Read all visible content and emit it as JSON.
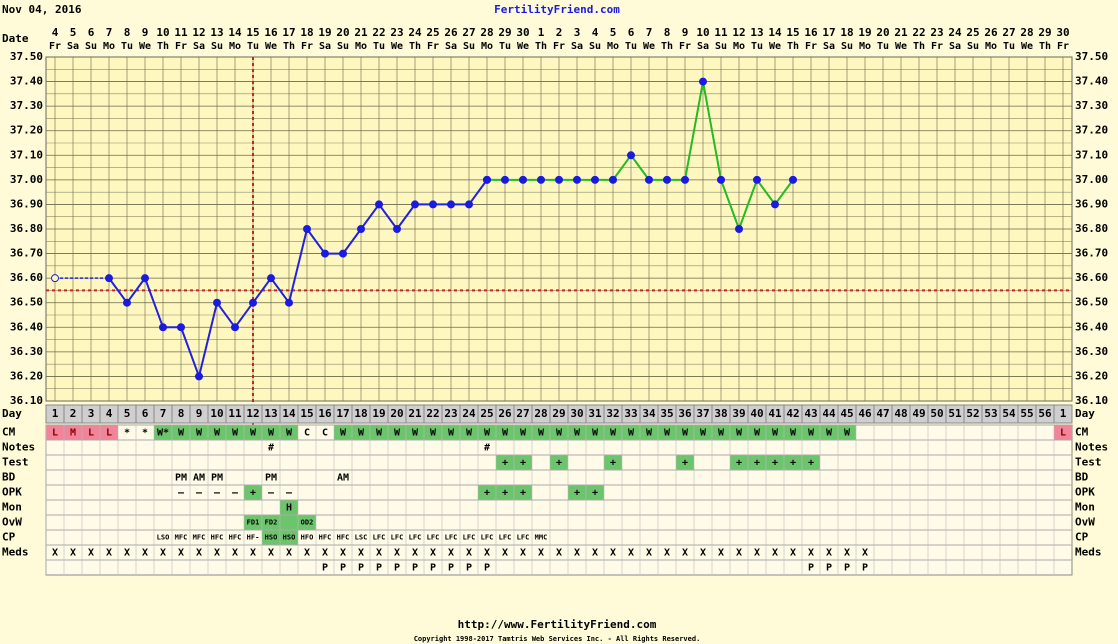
{
  "chart_data": {
    "type": "line",
    "header_date": "Nov 04, 2016",
    "title": "FertilityFriend.com",
    "date_label": "Date",
    "day_label": "Day",
    "dates": [
      4,
      5,
      6,
      7,
      8,
      9,
      10,
      11,
      12,
      13,
      14,
      15,
      16,
      17,
      18,
      19,
      20,
      21,
      22,
      23,
      24,
      25,
      26,
      27,
      28,
      29,
      30,
      1,
      2,
      3,
      4,
      5,
      6,
      7,
      8,
      9,
      10,
      11,
      12,
      13,
      14,
      15,
      16,
      17,
      18,
      19,
      20,
      21,
      22,
      23,
      24,
      25,
      26,
      27,
      28,
      29,
      30
    ],
    "weekdays": [
      "Fr",
      "Sa",
      "Su",
      "Mo",
      "Tu",
      "We",
      "Th",
      "Fr",
      "Sa",
      "Su",
      "Mo",
      "Tu",
      "We",
      "Th",
      "Fr",
      "Sa",
      "Su",
      "Mo",
      "Tu",
      "We",
      "Th",
      "Fr",
      "Sa",
      "Su",
      "Mo",
      "Tu",
      "We",
      "Th",
      "Fr",
      "Sa",
      "Su",
      "Mo",
      "Tu",
      "We",
      "Th",
      "Fr",
      "Sa",
      "Su",
      "Mo",
      "Tu",
      "We",
      "Th",
      "Fr",
      "Sa",
      "Su",
      "Mo",
      "Tu",
      "We",
      "Th",
      "Fr",
      "Sa",
      "Su",
      "Mo",
      "Tu",
      "We",
      "Th",
      "Fr"
    ],
    "categories": [
      1,
      2,
      3,
      4,
      5,
      6,
      7,
      8,
      9,
      10,
      11,
      12,
      13,
      14,
      15,
      16,
      17,
      18,
      19,
      20,
      21,
      22,
      23,
      24,
      25,
      26,
      27,
      28,
      29,
      30,
      31,
      32,
      33,
      34,
      35,
      36,
      37,
      38,
      39,
      40,
      41,
      42,
      43,
      44,
      45,
      46,
      47,
      48,
      49,
      50,
      51,
      52,
      53,
      54,
      55,
      56,
      1
    ],
    "ylim": [
      36.1,
      37.5
    ],
    "yticks": [
      {
        "value": 36.1,
        "label": "36.10"
      },
      {
        "value": 36.2,
        "label": "36.20"
      },
      {
        "value": 36.3,
        "label": "36.30"
      },
      {
        "value": 36.4,
        "label": "36.40"
      },
      {
        "value": 36.5,
        "label": "36.50"
      },
      {
        "value": 36.6,
        "label": "36.60"
      },
      {
        "value": 36.7,
        "label": "36.70"
      },
      {
        "value": 36.8,
        "label": "36.80"
      },
      {
        "value": 36.9,
        "label": "36.90"
      },
      {
        "value": 37.0,
        "label": "37.00"
      },
      {
        "value": 37.1,
        "label": "37.10"
      },
      {
        "value": 37.2,
        "label": "37.20"
      },
      {
        "value": 37.3,
        "label": "37.30"
      },
      {
        "value": 37.4,
        "label": "37.40"
      },
      {
        "value": 37.5,
        "label": "37.50"
      }
    ],
    "minor_yticks": [
      36.15,
      36.25,
      36.35,
      36.45,
      36.55,
      36.65,
      36.75,
      36.85,
      36.95,
      37.05,
      37.15,
      37.25,
      37.35,
      37.45
    ],
    "grid": true,
    "coverline": 36.55,
    "coverline_color": "#cc2222",
    "ovulation_day": 12,
    "series": [
      {
        "color": "#1a1ae0",
        "line_color": "#2222dd",
        "open_markers": [
          0
        ],
        "values": [
          36.6,
          null,
          null,
          36.6,
          36.5,
          36.6,
          36.4,
          36.4,
          36.2,
          36.5,
          36.4,
          36.5,
          36.6,
          36.5,
          36.8,
          36.7,
          36.7,
          36.8,
          36.9,
          36.8,
          36.9,
          36.9,
          36.9,
          36.9,
          37.0,
          null,
          null,
          null,
          null,
          null,
          null,
          null,
          null,
          null,
          null,
          null,
          null,
          null,
          null,
          null,
          null,
          null,
          null,
          null,
          null,
          null,
          null,
          null,
          null,
          null,
          null,
          null,
          null,
          null,
          null,
          null,
          null
        ]
      },
      {
        "color": "#1a1ae0",
        "line_color": "#22bb22",
        "values": [
          null,
          null,
          null,
          null,
          null,
          null,
          null,
          null,
          null,
          null,
          null,
          null,
          null,
          null,
          null,
          null,
          null,
          null,
          null,
          null,
          null,
          null,
          null,
          null,
          37.0,
          37.0,
          37.0,
          37.0,
          37.0,
          37.0,
          37.0,
          37.0,
          37.1,
          37.0,
          37.0,
          37.0,
          37.4,
          37.0,
          36.8,
          37.0,
          36.9,
          37.0,
          null,
          null,
          null,
          null,
          null,
          null,
          null,
          null,
          null,
          null,
          null,
          null,
          null,
          null,
          null
        ]
      }
    ],
    "rows": [
      {
        "label": "CM",
        "cells": {
          "0": "L",
          "1": "M",
          "2": "L",
          "3": "L",
          "4": "*",
          "5": "*",
          "6": "W*",
          "7": "W",
          "8": "W",
          "9": "W",
          "10": "W",
          "11": "W",
          "12": "W",
          "13": "W",
          "14": "C",
          "15": "C",
          "16": "W",
          "17": "W",
          "18": "W",
          "19": "W",
          "20": "W",
          "21": "W",
          "22": "W",
          "23": "W",
          "24": "W",
          "25": "W",
          "26": "W",
          "27": "W",
          "28": "W",
          "29": "W",
          "30": "W",
          "31": "W",
          "32": "W",
          "33": "W",
          "34": "W",
          "35": "W",
          "36": "W",
          "37": "W",
          "38": "W",
          "39": "W",
          "40": "W",
          "41": "W",
          "42": "W",
          "43": "W",
          "44": "W",
          "56": "L"
        },
        "pink": [
          0,
          1,
          2,
          3,
          56
        ],
        "green": [
          6,
          7,
          8,
          9,
          10,
          11,
          12,
          13,
          16,
          17,
          18,
          19,
          20,
          21,
          22,
          23,
          24,
          25,
          26,
          27,
          28,
          29,
          30,
          31,
          32,
          33,
          34,
          35,
          36,
          37,
          38,
          39,
          40,
          41,
          42,
          43,
          44
        ]
      },
      {
        "label": "Notes",
        "cells": {
          "12": "#",
          "24": "#"
        }
      },
      {
        "label": "Test",
        "cells": {
          "25": "+",
          "26": "+",
          "28": "+",
          "31": "+",
          "35": "+",
          "38": "+",
          "39": "+",
          "40": "+",
          "41": "+",
          "42": "+"
        },
        "green": [
          25,
          26,
          28,
          31,
          35,
          38,
          39,
          40,
          41,
          42
        ]
      },
      {
        "label": "BD",
        "cells": {
          "7": "PM",
          "8": "AM",
          "9": "PM",
          "12": "PM",
          "16": "AM"
        }
      },
      {
        "label": "OPK",
        "cells": {
          "7": "–",
          "8": "–",
          "9": "–",
          "10": "–",
          "11": "+",
          "12": "–",
          "13": "–",
          "24": "+",
          "25": "+",
          "26": "+",
          "29": "+",
          "30": "+"
        },
        "green": [
          11,
          24,
          25,
          26,
          29,
          30
        ]
      },
      {
        "label": "Mon",
        "cells": {
          "13": "H"
        },
        "green": [
          13
        ]
      },
      {
        "label": "OvW",
        "cells": {
          "11": "FD1",
          "12": "FD2",
          "14": "OD2"
        },
        "green": [
          11,
          12,
          13,
          14
        ],
        "small": true
      },
      {
        "label": "CP",
        "cells": {
          "6": "LSO",
          "7": "MFC",
          "8": "MFC",
          "9": "HFC",
          "10": "HFC",
          "11": "HF-",
          "12": "HSO",
          "13": "HSO",
          "14": "HFO",
          "15": "HFC",
          "16": "HFC",
          "17": "LSC",
          "18": "LFC",
          "19": "LFC",
          "20": "LFC",
          "21": "LFC",
          "22": "LFC",
          "23": "LFC",
          "24": "LFC",
          "25": "LFC",
          "26": "LFC",
          "27": "MMC"
        },
        "green": [
          12,
          13
        ],
        "small": true
      },
      {
        "label": "Meds",
        "cells": {
          "0": "X",
          "1": "X",
          "2": "X",
          "3": "X",
          "4": "X",
          "5": "X",
          "6": "X",
          "7": "X",
          "8": "X",
          "9": "X",
          "10": "X",
          "11": "X",
          "12": "X",
          "13": "X",
          "14": "X",
          "15": "X",
          "16": "X",
          "17": "X",
          "18": "X",
          "19": "X",
          "20": "X",
          "21": "X",
          "22": "X",
          "23": "X",
          "24": "X",
          "25": "X",
          "26": "X",
          "27": "X",
          "28": "X",
          "29": "X",
          "30": "X",
          "31": "X",
          "32": "X",
          "33": "X",
          "34": "X",
          "35": "X",
          "36": "X",
          "37": "X",
          "38": "X",
          "39": "X",
          "40": "X",
          "41": "X",
          "42": "X",
          "43": "X",
          "44": "X",
          "45": "X"
        }
      },
      {
        "cells": {
          "15": "P",
          "16": "P",
          "17": "P",
          "18": "P",
          "19": "P",
          "20": "P",
          "21": "P",
          "22": "P",
          "23": "P",
          "24": "P",
          "42": "P",
          "43": "P",
          "44": "P",
          "45": "P"
        }
      }
    ],
    "footer_url": "http://www.FertilityFriend.com",
    "copyright": "Copyright 1998-2017 Tamtris Web Services Inc. - All Rights Reserved."
  }
}
